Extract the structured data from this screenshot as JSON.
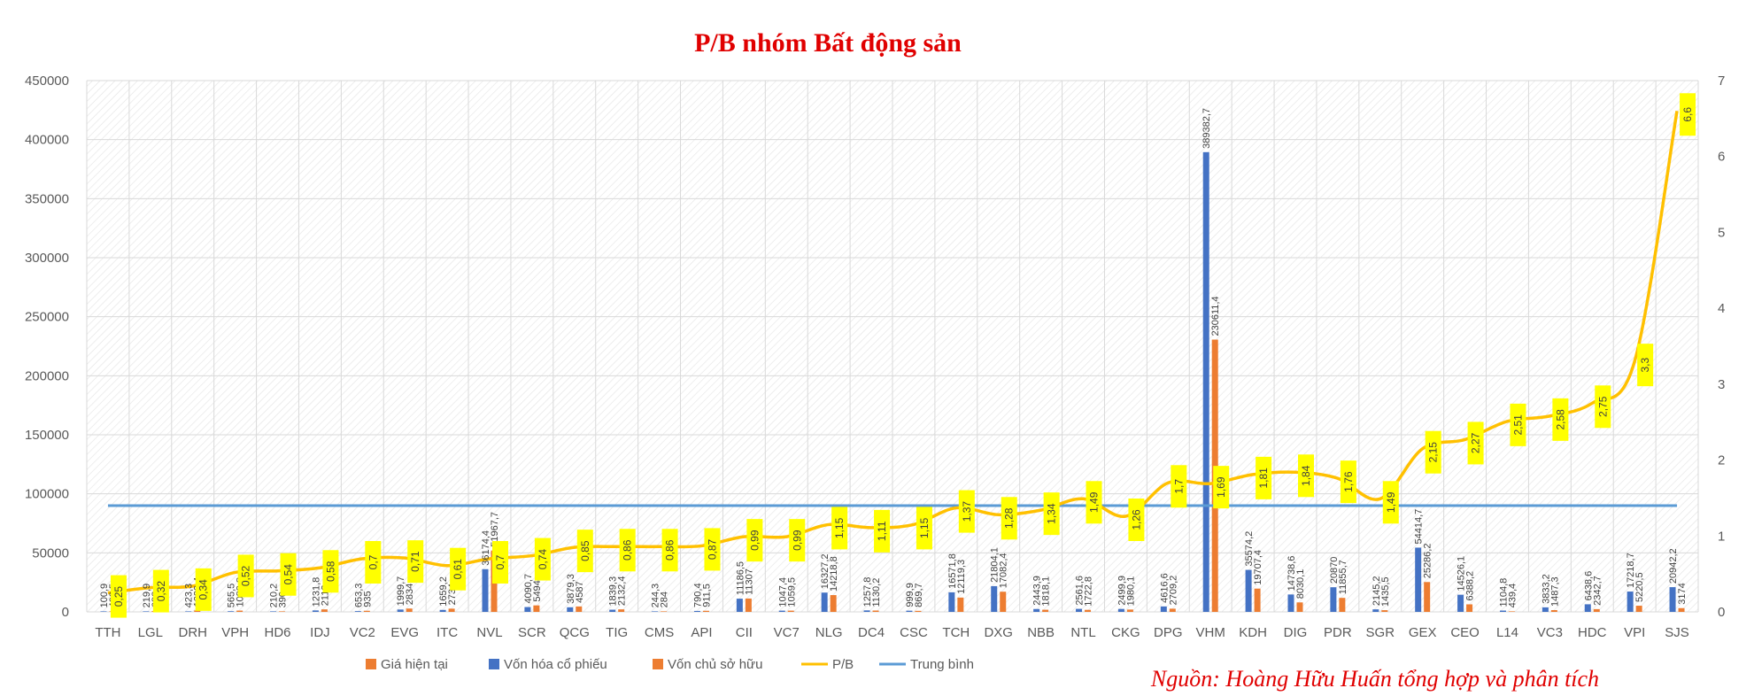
{
  "chart_data": {
    "type": "bar",
    "title": "P/B nhóm Bất động sản",
    "source": "Nguồn: Hoàng Hữu Huấn tổng hợp và phân tích",
    "xlabel": "",
    "ylabel": "",
    "ylim": [
      0,
      450000
    ],
    "y_ticks": [
      "0",
      "50000",
      "100000",
      "150000",
      "200000",
      "250000",
      "300000",
      "350000",
      "400000",
      "450000"
    ],
    "y2lim": [
      0,
      7
    ],
    "y2_ticks": [
      "0",
      "1",
      "2",
      "3",
      "4",
      "5",
      "6",
      "7"
    ],
    "grid": true,
    "legend_position": "bottom",
    "legend": [
      "Giá hiện tại",
      "Vốn hóa cổ phiếu",
      "Vốn chủ sở hữu",
      "P/B",
      "Trung bình"
    ],
    "categories": [
      "TTH",
      "LGL",
      "DRH",
      "VPH",
      "HD6",
      "IDJ",
      "VC2",
      "EVG",
      "ITC",
      "NVL",
      "SCR",
      "QCG",
      "TIG",
      "CMS",
      "API",
      "CII",
      "VC7",
      "NLG",
      "DC4",
      "CSC",
      "TCH",
      "DXG",
      "NBB",
      "NTL",
      "CKG",
      "DPG",
      "VHM",
      "KDH",
      "DIG",
      "PDR",
      "SGR",
      "GEX",
      "CEO",
      "L14",
      "VC3",
      "HDC",
      "VPI",
      "SJS"
    ],
    "series": [
      {
        "name": "Vốn hóa cổ phiếu",
        "type": "bar",
        "color": "#4472c4",
        "values": [
          100.9,
          219.9,
          423.3,
          565.5,
          210.2,
          1231.8,
          653.3,
          1999.7,
          1659.2,
          36174.4,
          4090.7,
          3879.3,
          1839.3,
          244.3,
          790.4,
          11186.5,
          1047.4,
          16327.2,
          1257.8,
          999.9,
          16571.8,
          21804.1,
          2443.9,
          2561.6,
          2499.9,
          4616.6,
          389382.7,
          35574.2,
          14738.6,
          20870,
          2145.2,
          54414.7,
          14526.1,
          1104.8,
          3833.2,
          6438.6,
          17218.7,
          20942.2
        ],
        "labels": [
          "100,9",
          "219,9",
          "423,3",
          "565,5",
          "210,2",
          "1231,8",
          "653,3",
          "1999,7",
          "1659,2",
          "36174,4",
          "4090,7",
          "3879,3",
          "1839,3",
          "244,3",
          "790,4",
          "11186,5",
          "1047,4",
          "16327,2",
          "1257,8",
          "999,9",
          "16571,8",
          "21804,1",
          "2443,9",
          "2561,6",
          "2499,9",
          "4616,6",
          "389382,7",
          "35574,2",
          "14738,6",
          "20870",
          "2145,2",
          "54414,7",
          "14526,1",
          "1104,8",
          "3833,2",
          "6438,6",
          "17218,7",
          "20942,2"
        ]
      },
      {
        "name": "Vốn chủ sở hữu",
        "type": "bar",
        "color": "#ed7d31",
        "values": [
          403.5,
          683,
          1239.4,
          1083.8,
          390,
          2113,
          935,
          2834,
          2734,
          51967.7,
          5494,
          4587,
          2132.4,
          284,
          911.5,
          11307,
          1059.5,
          14218.8,
          1130.2,
          869.7,
          12119.3,
          17082.4,
          1818.1,
          1722.8,
          1980.1,
          2709.2,
          230611.4,
          19707.4,
          8030.1,
          11855.7,
          1435.5,
          25286.2,
          6388.2,
          439.4,
          1487.3,
          2342.7,
          5220.5,
          3174
        ],
        "labels": [
          "403,5",
          "683",
          "1239,4",
          "1083,8",
          "390",
          "2113",
          "935",
          "2834",
          "2734",
          "51967,7",
          "5494",
          "4587",
          "2132,4",
          "284",
          "911,5",
          "11307",
          "1059,5",
          "14218,8",
          "1130,2",
          "869,7",
          "12119,3",
          "17082,4",
          "1818,1",
          "1722,8",
          "1980,1",
          "2709,2",
          "230611,4",
          "19707,4",
          "8030,1",
          "11855,7",
          "1435,5",
          "25286,2",
          "6388,2",
          "439,4",
          "1487,3",
          "2342,7",
          "5220,5",
          "3174"
        ]
      },
      {
        "name": "P/B",
        "type": "line",
        "axis": "secondary",
        "color": "#ffc000",
        "values": [
          0.25,
          0.32,
          0.34,
          0.52,
          0.54,
          0.58,
          0.7,
          0.71,
          0.61,
          0.7,
          0.74,
          0.85,
          0.86,
          0.86,
          0.87,
          0.99,
          0.99,
          1.15,
          1.11,
          1.15,
          1.37,
          1.28,
          1.34,
          1.49,
          1.26,
          1.7,
          1.69,
          1.81,
          1.84,
          1.76,
          1.49,
          2.15,
          2.27,
          2.51,
          2.58,
          2.75,
          3.3,
          6.6
        ],
        "labels": [
          "0,25",
          "0,32",
          "0,34",
          "0,52",
          "0,54",
          "0,58",
          "0,7",
          "0,71",
          "0,61",
          "0,7",
          "0,74",
          "0,85",
          "0,86",
          "0,86",
          "0,87",
          "0,99",
          "0,99",
          "1,15",
          "1,11",
          "1,15",
          "1,37",
          "1,28",
          "1,34",
          "1,49",
          "1,26",
          "1,7",
          "1,69",
          "1,81",
          "1,84",
          "1,76",
          "1,49",
          "2,15",
          "2,27",
          "2,51",
          "2,58",
          "2,75",
          "3,3",
          "6,6"
        ]
      },
      {
        "name": "Trung bình",
        "type": "line",
        "color": "#5b9bd5",
        "value": 1.4
      }
    ]
  },
  "colors": {
    "title": "#e00000",
    "grid": "#d9d9d9",
    "label_box": "#ffff00"
  }
}
